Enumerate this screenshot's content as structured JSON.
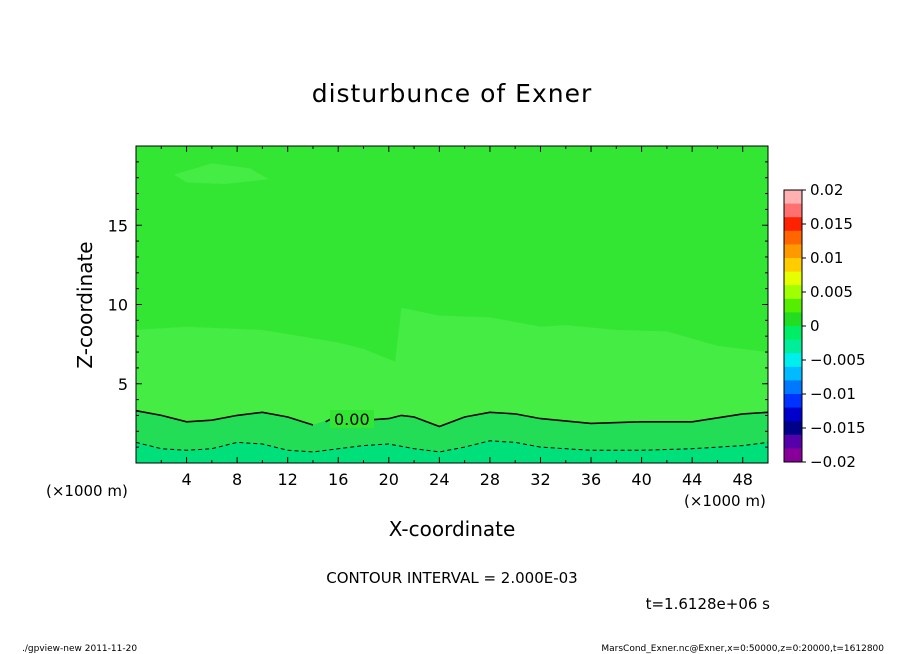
{
  "chart_data": {
    "type": "heatmap",
    "title": "disturbunce of Exner",
    "xlabel": "X-coordinate",
    "ylabel": "Z-coordinate",
    "x_unit": "(×1000 m)",
    "y_unit": "(×1000 m)",
    "xlim": [
      0,
      50
    ],
    "ylim": [
      0,
      20
    ],
    "x_ticks": [
      4,
      8,
      12,
      16,
      20,
      24,
      28,
      32,
      36,
      40,
      44,
      48
    ],
    "y_ticks": [
      5,
      10,
      15
    ],
    "contour_label": "0.00",
    "contour_zero_line": [
      [
        0,
        3.3
      ],
      [
        2,
        3.0
      ],
      [
        4,
        2.6
      ],
      [
        6,
        2.7
      ],
      [
        8,
        3.0
      ],
      [
        10,
        3.2
      ],
      [
        12,
        2.9
      ],
      [
        14,
        2.4
      ],
      [
        15.5,
        2.8
      ],
      [
        18,
        2.7
      ],
      [
        20,
        2.8
      ],
      [
        21,
        3.0
      ],
      [
        22,
        2.9
      ],
      [
        24,
        2.3
      ],
      [
        26,
        2.9
      ],
      [
        28,
        3.2
      ],
      [
        30,
        3.1
      ],
      [
        32,
        2.8
      ],
      [
        36,
        2.5
      ],
      [
        40,
        2.6
      ],
      [
        44,
        2.6
      ],
      [
        48,
        3.1
      ],
      [
        50,
        3.2
      ]
    ],
    "contour_neg_line": [
      [
        0,
        1.3
      ],
      [
        2,
        0.9
      ],
      [
        4,
        0.8
      ],
      [
        6,
        0.9
      ],
      [
        8,
        1.3
      ],
      [
        10,
        1.2
      ],
      [
        12,
        0.8
      ],
      [
        14,
        0.7
      ],
      [
        16,
        0.9
      ],
      [
        18,
        1.1
      ],
      [
        20,
        1.2
      ],
      [
        22,
        0.9
      ],
      [
        24,
        0.7
      ],
      [
        26,
        1.0
      ],
      [
        28,
        1.4
      ],
      [
        30,
        1.3
      ],
      [
        32,
        1.0
      ],
      [
        36,
        0.8
      ],
      [
        40,
        0.8
      ],
      [
        44,
        0.9
      ],
      [
        48,
        1.1
      ],
      [
        50,
        1.3
      ]
    ],
    "colorbar": {
      "labels": [
        "0.02",
        "0.015",
        "0.01",
        "0.005",
        "0",
        "−0.005",
        "−0.01",
        "−0.015",
        "−0.02"
      ],
      "levels": [
        0.02,
        0.015,
        0.01,
        0.005,
        0,
        -0.005,
        -0.01,
        -0.015,
        -0.02
      ],
      "colors": [
        "#ffb0b0",
        "#ff7070",
        "#ff2200",
        "#ff6600",
        "#ff9900",
        "#ffcc00",
        "#e6ff00",
        "#a0ff00",
        "#55ee00",
        "#22dd22",
        "#00ee66",
        "#00ee99",
        "#00eeee",
        "#00bbff",
        "#0077ff",
        "#0033ff",
        "#0000cc",
        "#000088",
        "#5500aa",
        "#880099"
      ]
    },
    "fill_colors": {
      "main": "#33e633",
      "light_patch": "#44ec44",
      "lower_band": "#22dd55",
      "bottom_band": "#00e07a"
    }
  },
  "annotations": {
    "contour_interval": "CONTOUR INTERVAL = 2.000E-03",
    "time": "t=1.6128e+06 s"
  },
  "footer": {
    "left": "./gpview-new  2011-11-20",
    "right": "MarsCond_Exner.nc@Exner,x=0:50000,z=0:20000,t=1612800"
  }
}
